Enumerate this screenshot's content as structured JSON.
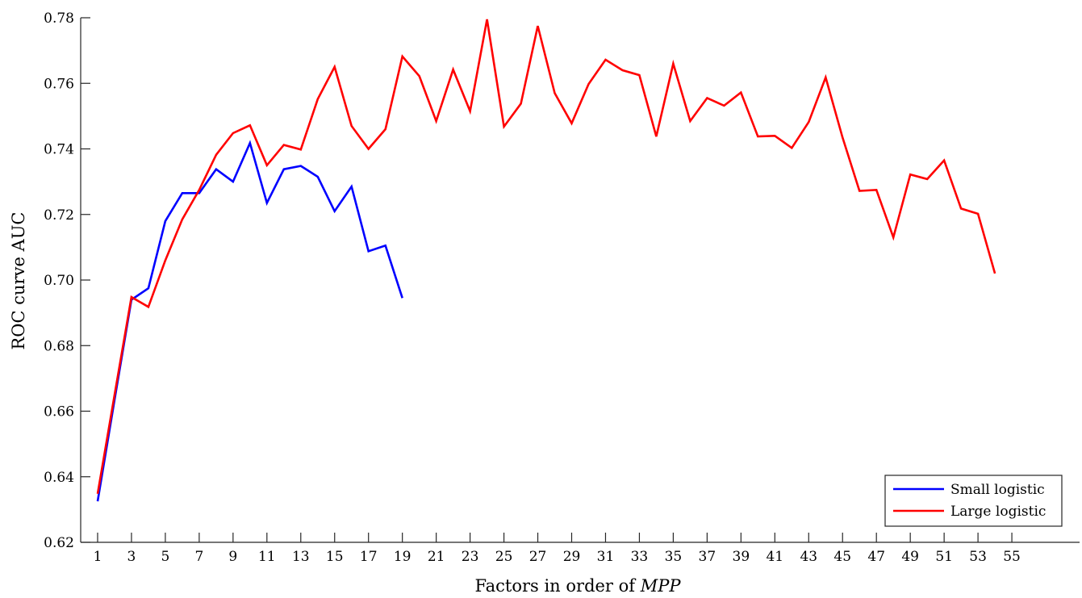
{
  "chart_data": {
    "type": "line",
    "xlabel_prefix": "Factors in order of ",
    "xlabel_italic": "MPP",
    "ylabel": "ROC curve AUC",
    "xlim": [
      0,
      59
    ],
    "ylim": [
      0.62,
      0.78
    ],
    "x_ticks": [
      1,
      3,
      5,
      7,
      9,
      11,
      13,
      15,
      17,
      19,
      21,
      23,
      25,
      27,
      29,
      31,
      33,
      35,
      37,
      39,
      41,
      43,
      45,
      47,
      49,
      51,
      53,
      55
    ],
    "y_ticks": [
      0.62,
      0.64,
      0.66,
      0.68,
      0.7,
      0.72,
      0.74,
      0.76,
      0.78
    ],
    "y_tick_labels": [
      "0.62",
      "0.64",
      "0.66",
      "0.68",
      "0.70",
      "0.72",
      "0.74",
      "0.76",
      "0.78"
    ],
    "grid": false,
    "legend_position": "bottom-right",
    "series": [
      {
        "name": "Small logistic",
        "color": "#0000ff",
        "x": [
          1,
          2,
          3,
          4,
          5,
          6,
          7,
          8,
          9,
          10,
          11,
          12,
          13,
          14,
          15,
          16,
          17,
          18,
          19
        ],
        "y": [
          0.6325,
          0.6635,
          0.694,
          0.6975,
          0.718,
          0.7265,
          0.7265,
          0.7338,
          0.73,
          0.7418,
          0.7235,
          0.7338,
          0.7348,
          0.7315,
          0.721,
          0.7285,
          0.7088,
          0.7105,
          0.6945
        ]
      },
      {
        "name": "Large logistic",
        "color": "#ff0000",
        "x": [
          1,
          2,
          3,
          4,
          5,
          6,
          7,
          8,
          9,
          10,
          11,
          12,
          13,
          14,
          15,
          16,
          17,
          18,
          19,
          20,
          21,
          22,
          23,
          24,
          25,
          26,
          27,
          28,
          29,
          30,
          31,
          32,
          33,
          34,
          35,
          36,
          37,
          38,
          39,
          40,
          41,
          42,
          43,
          44,
          45,
          46,
          47,
          48,
          49,
          50,
          51,
          52,
          53,
          54
        ],
        "y": [
          0.6348,
          0.665,
          0.6948,
          0.6918,
          0.706,
          0.7185,
          0.7275,
          0.7382,
          0.7448,
          0.7472,
          0.735,
          0.7412,
          0.7398,
          0.7552,
          0.765,
          0.747,
          0.74,
          0.746,
          0.7682,
          0.7622,
          0.7485,
          0.7642,
          0.7515,
          0.7795,
          0.7468,
          0.7538,
          0.7775,
          0.757,
          0.7478,
          0.7598,
          0.7672,
          0.764,
          0.7625,
          0.7438,
          0.766,
          0.7485,
          0.7555,
          0.7532,
          0.7572,
          0.7438,
          0.744,
          0.7403,
          0.7482,
          0.7618,
          0.7435,
          0.7272,
          0.7275,
          0.713,
          0.7322,
          0.7308,
          0.7365,
          0.7218,
          0.7202,
          0.702
        ]
      }
    ]
  }
}
